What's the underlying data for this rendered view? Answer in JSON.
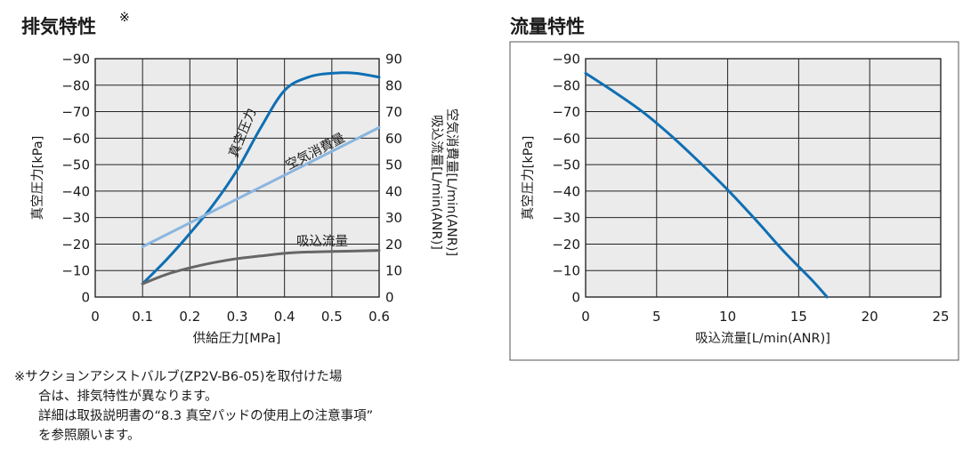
{
  "chart_data": [
    {
      "type": "line",
      "title": "排気特性",
      "title_mark": "※",
      "xlabel": "供給圧力[MPa]",
      "ylabel_left": "真空圧力[kPa]",
      "ylabel_right_1": "吸込流量[L/min(ANR)]",
      "ylabel_right_2": "空気消費量[L/min(ANR)]",
      "xlim": [
        0,
        0.6
      ],
      "ylim_left": [
        0,
        -90
      ],
      "ylim_right": [
        0,
        90
      ],
      "x_ticks": [
        "0",
        "0.1",
        "0.2",
        "0.3",
        "0.4",
        "0.5",
        "0.6"
      ],
      "y_ticks_left": [
        "0",
        "−10",
        "−20",
        "−30",
        "−40",
        "−50",
        "−60",
        "−70",
        "−80",
        "−90"
      ],
      "y_ticks_right": [
        "0",
        "10",
        "20",
        "30",
        "40",
        "50",
        "60",
        "70",
        "80",
        "90"
      ],
      "grid": true,
      "series": [
        {
          "name": "真空圧力",
          "color": "#0f6fb3",
          "axis": "left",
          "x": [
            0.1,
            0.15,
            0.2,
            0.25,
            0.3,
            0.35,
            0.4,
            0.45,
            0.5,
            0.55,
            0.6
          ],
          "y": [
            -5,
            -14,
            -24,
            -35,
            -48,
            -64,
            -78,
            -83,
            -84.5,
            -84.5,
            -83
          ]
        },
        {
          "name": "空気消費量",
          "color": "#8ab6df",
          "axis": "right",
          "x": [
            0.1,
            0.6
          ],
          "y": [
            19,
            64
          ]
        },
        {
          "name": "吸込流量",
          "color": "#666666",
          "axis": "right",
          "x": [
            0.1,
            0.15,
            0.2,
            0.25,
            0.3,
            0.35,
            0.4,
            0.45,
            0.5,
            0.55,
            0.6
          ],
          "y": [
            5,
            8.5,
            11,
            13,
            14.5,
            15.5,
            16.5,
            17,
            17.2,
            17.4,
            17.6
          ]
        }
      ]
    },
    {
      "type": "line",
      "title": "流量特性",
      "xlabel": "吸込流量[L/min(ANR)]",
      "ylabel": "真空圧力[kPa]",
      "xlim": [
        0,
        25
      ],
      "ylim": [
        0,
        -90
      ],
      "x_ticks": [
        "0",
        "5",
        "10",
        "15",
        "20",
        "25"
      ],
      "y_ticks": [
        "0",
        "−10",
        "−20",
        "−30",
        "−40",
        "−50",
        "−60",
        "−70",
        "−80",
        "−90"
      ],
      "grid": true,
      "series": [
        {
          "color": "#0f6fb3",
          "x": [
            0,
            2,
            4,
            6,
            8,
            10,
            12,
            14,
            16,
            17
          ],
          "y": [
            -84.5,
            -77.5,
            -70,
            -61,
            -51,
            -40.5,
            -29,
            -17,
            -6,
            0
          ]
        }
      ]
    }
  ],
  "note": [
    "※サクションアシストバルブ(ZP2V-B6-05)を取付けた場",
    "合は、排気特性が異なります。",
    "詳細は取扱説明書の“8.3 真空パッドの使用上の注意事項”",
    "を参照願います。"
  ]
}
